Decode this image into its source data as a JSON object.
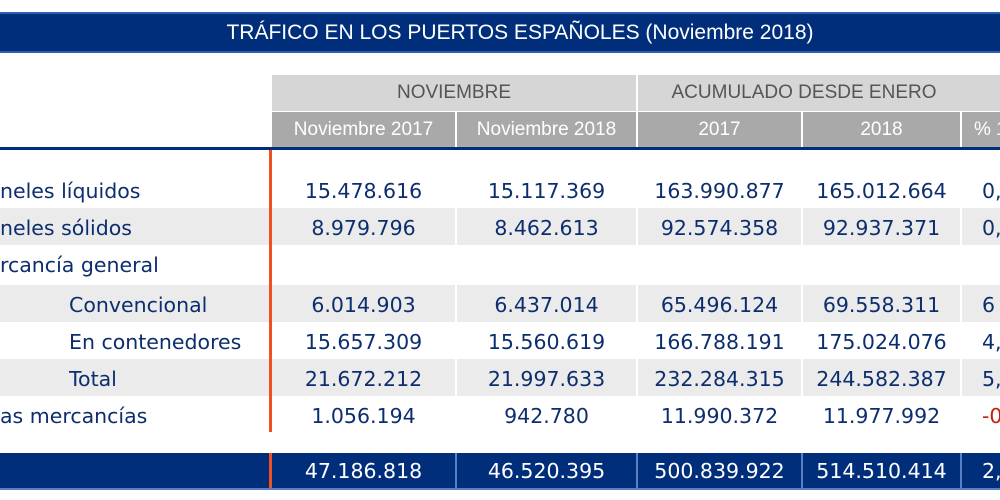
{
  "title": "TRÁFICO EN LOS PUERTOS ESPAÑOLES (Noviembre 2018)",
  "header": {
    "groups": [
      "NOVIEMBRE",
      "ACUMULADO DESDE ENERO"
    ],
    "columns": [
      "Noviembre 2017",
      "Noviembre 2018",
      "2017",
      "2018",
      "% 1"
    ]
  },
  "rows": [
    {
      "label": "neles líquidos",
      "values": [
        "15.478.616",
        "15.117.369",
        "163.990.877",
        "165.012.664",
        "0,"
      ]
    },
    {
      "label": "neles sólidos",
      "values": [
        "8.979.796",
        "8.462.613",
        "92.574.358",
        "92.937.371",
        "0,"
      ]
    },
    {
      "label": "rcancía general",
      "values": [
        "",
        "",
        "",
        "",
        ""
      ]
    },
    {
      "label": "Convencional",
      "values": [
        "6.014.903",
        "6.437.014",
        "65.496.124",
        "69.558.311",
        "6"
      ]
    },
    {
      "label": "En contenedores",
      "values": [
        "15.657.309",
        "15.560.619",
        "166.788.191",
        "175.024.076",
        "4,"
      ]
    },
    {
      "label": "Total",
      "values": [
        "21.672.212",
        "21.997.633",
        "232.284.315",
        "244.582.387",
        "5,"
      ]
    },
    {
      "label": "as mercancías",
      "values": [
        "1.056.194",
        "942.780",
        "11.990.372",
        "11.977.992",
        "-0"
      ]
    }
  ],
  "total": {
    "label": "",
    "values": [
      "47.186.818",
      "46.520.395",
      "500.839.922",
      "514.510.414",
      "2,"
    ]
  },
  "colors": {
    "navy": "#002e7a",
    "accent_red": "#f04e23",
    "negative": "#c0200e"
  }
}
